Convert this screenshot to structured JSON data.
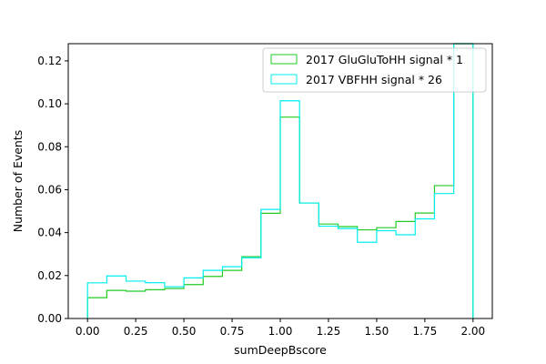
{
  "chart_data": {
    "type": "step-histogram",
    "xlabel": "sumDeepBscore",
    "ylabel": "Number of Events",
    "xlim": [
      -0.1,
      2.1
    ],
    "ylim": [
      0.0,
      0.128
    ],
    "xticks": [
      "0.00",
      "0.25",
      "0.50",
      "0.75",
      "1.00",
      "1.25",
      "1.50",
      "1.75",
      "2.00"
    ],
    "yticks": [
      "0.00",
      "0.02",
      "0.04",
      "0.06",
      "0.08",
      "0.10",
      "0.12"
    ],
    "bin_edges": [
      0.0,
      0.1,
      0.2,
      0.3,
      0.4,
      0.5,
      0.6,
      0.7,
      0.8,
      0.9,
      1.0,
      1.1,
      1.2,
      1.3,
      1.4,
      1.5,
      1.6,
      1.7,
      1.8,
      1.9,
      2.0
    ],
    "grid": false,
    "legend_position": "upper right",
    "series": [
      {
        "name": "2017 GluGluToHH signal * 1",
        "color": "#22cc22",
        "values": [
          0.0097,
          0.0131,
          0.0127,
          0.0134,
          0.014,
          0.0158,
          0.0196,
          0.0224,
          0.0288,
          0.049,
          0.0938,
          0.0538,
          0.044,
          0.0428,
          0.0413,
          0.0423,
          0.0452,
          0.0491,
          0.0619,
          0.128
        ]
      },
      {
        "name": "2017 VBFHH signal * 26",
        "color": "#00eeee",
        "values": [
          0.0166,
          0.0198,
          0.0174,
          0.0167,
          0.0148,
          0.0189,
          0.0224,
          0.0241,
          0.0283,
          0.0508,
          0.1014,
          0.0538,
          0.043,
          0.0419,
          0.0355,
          0.0409,
          0.039,
          0.0464,
          0.0582,
          0.128
        ]
      }
    ]
  }
}
